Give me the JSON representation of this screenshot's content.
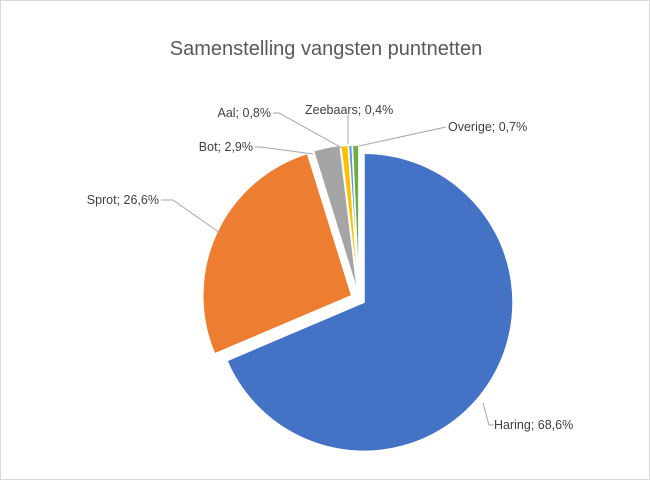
{
  "chart_data": {
    "type": "pie",
    "title": "Samenstelling vangsten puntnetten",
    "slices": [
      {
        "name": "Haring",
        "value": 68.6,
        "label": "Haring; 68,6%",
        "color": "#4472C4"
      },
      {
        "name": "Sprot",
        "value": 26.6,
        "label": "Sprot; 26,6%",
        "color": "#ED7D31"
      },
      {
        "name": "Bot",
        "value": 2.9,
        "label": "Bot; 2,9%",
        "color": "#A5A5A5"
      },
      {
        "name": "Aal",
        "value": 0.8,
        "label": "Aal; 0,8%",
        "color": "#FFC000"
      },
      {
        "name": "Zeebaars",
        "value": 0.4,
        "label": "Zeebaars; 0,4%",
        "color": "#5B9BD5"
      },
      {
        "name": "Overige",
        "value": 0.7,
        "label": "Overige; 0,7%",
        "color": "#70AD47"
      }
    ],
    "legend": "none",
    "data_labels": "outside with leader lines",
    "exploded": true
  }
}
